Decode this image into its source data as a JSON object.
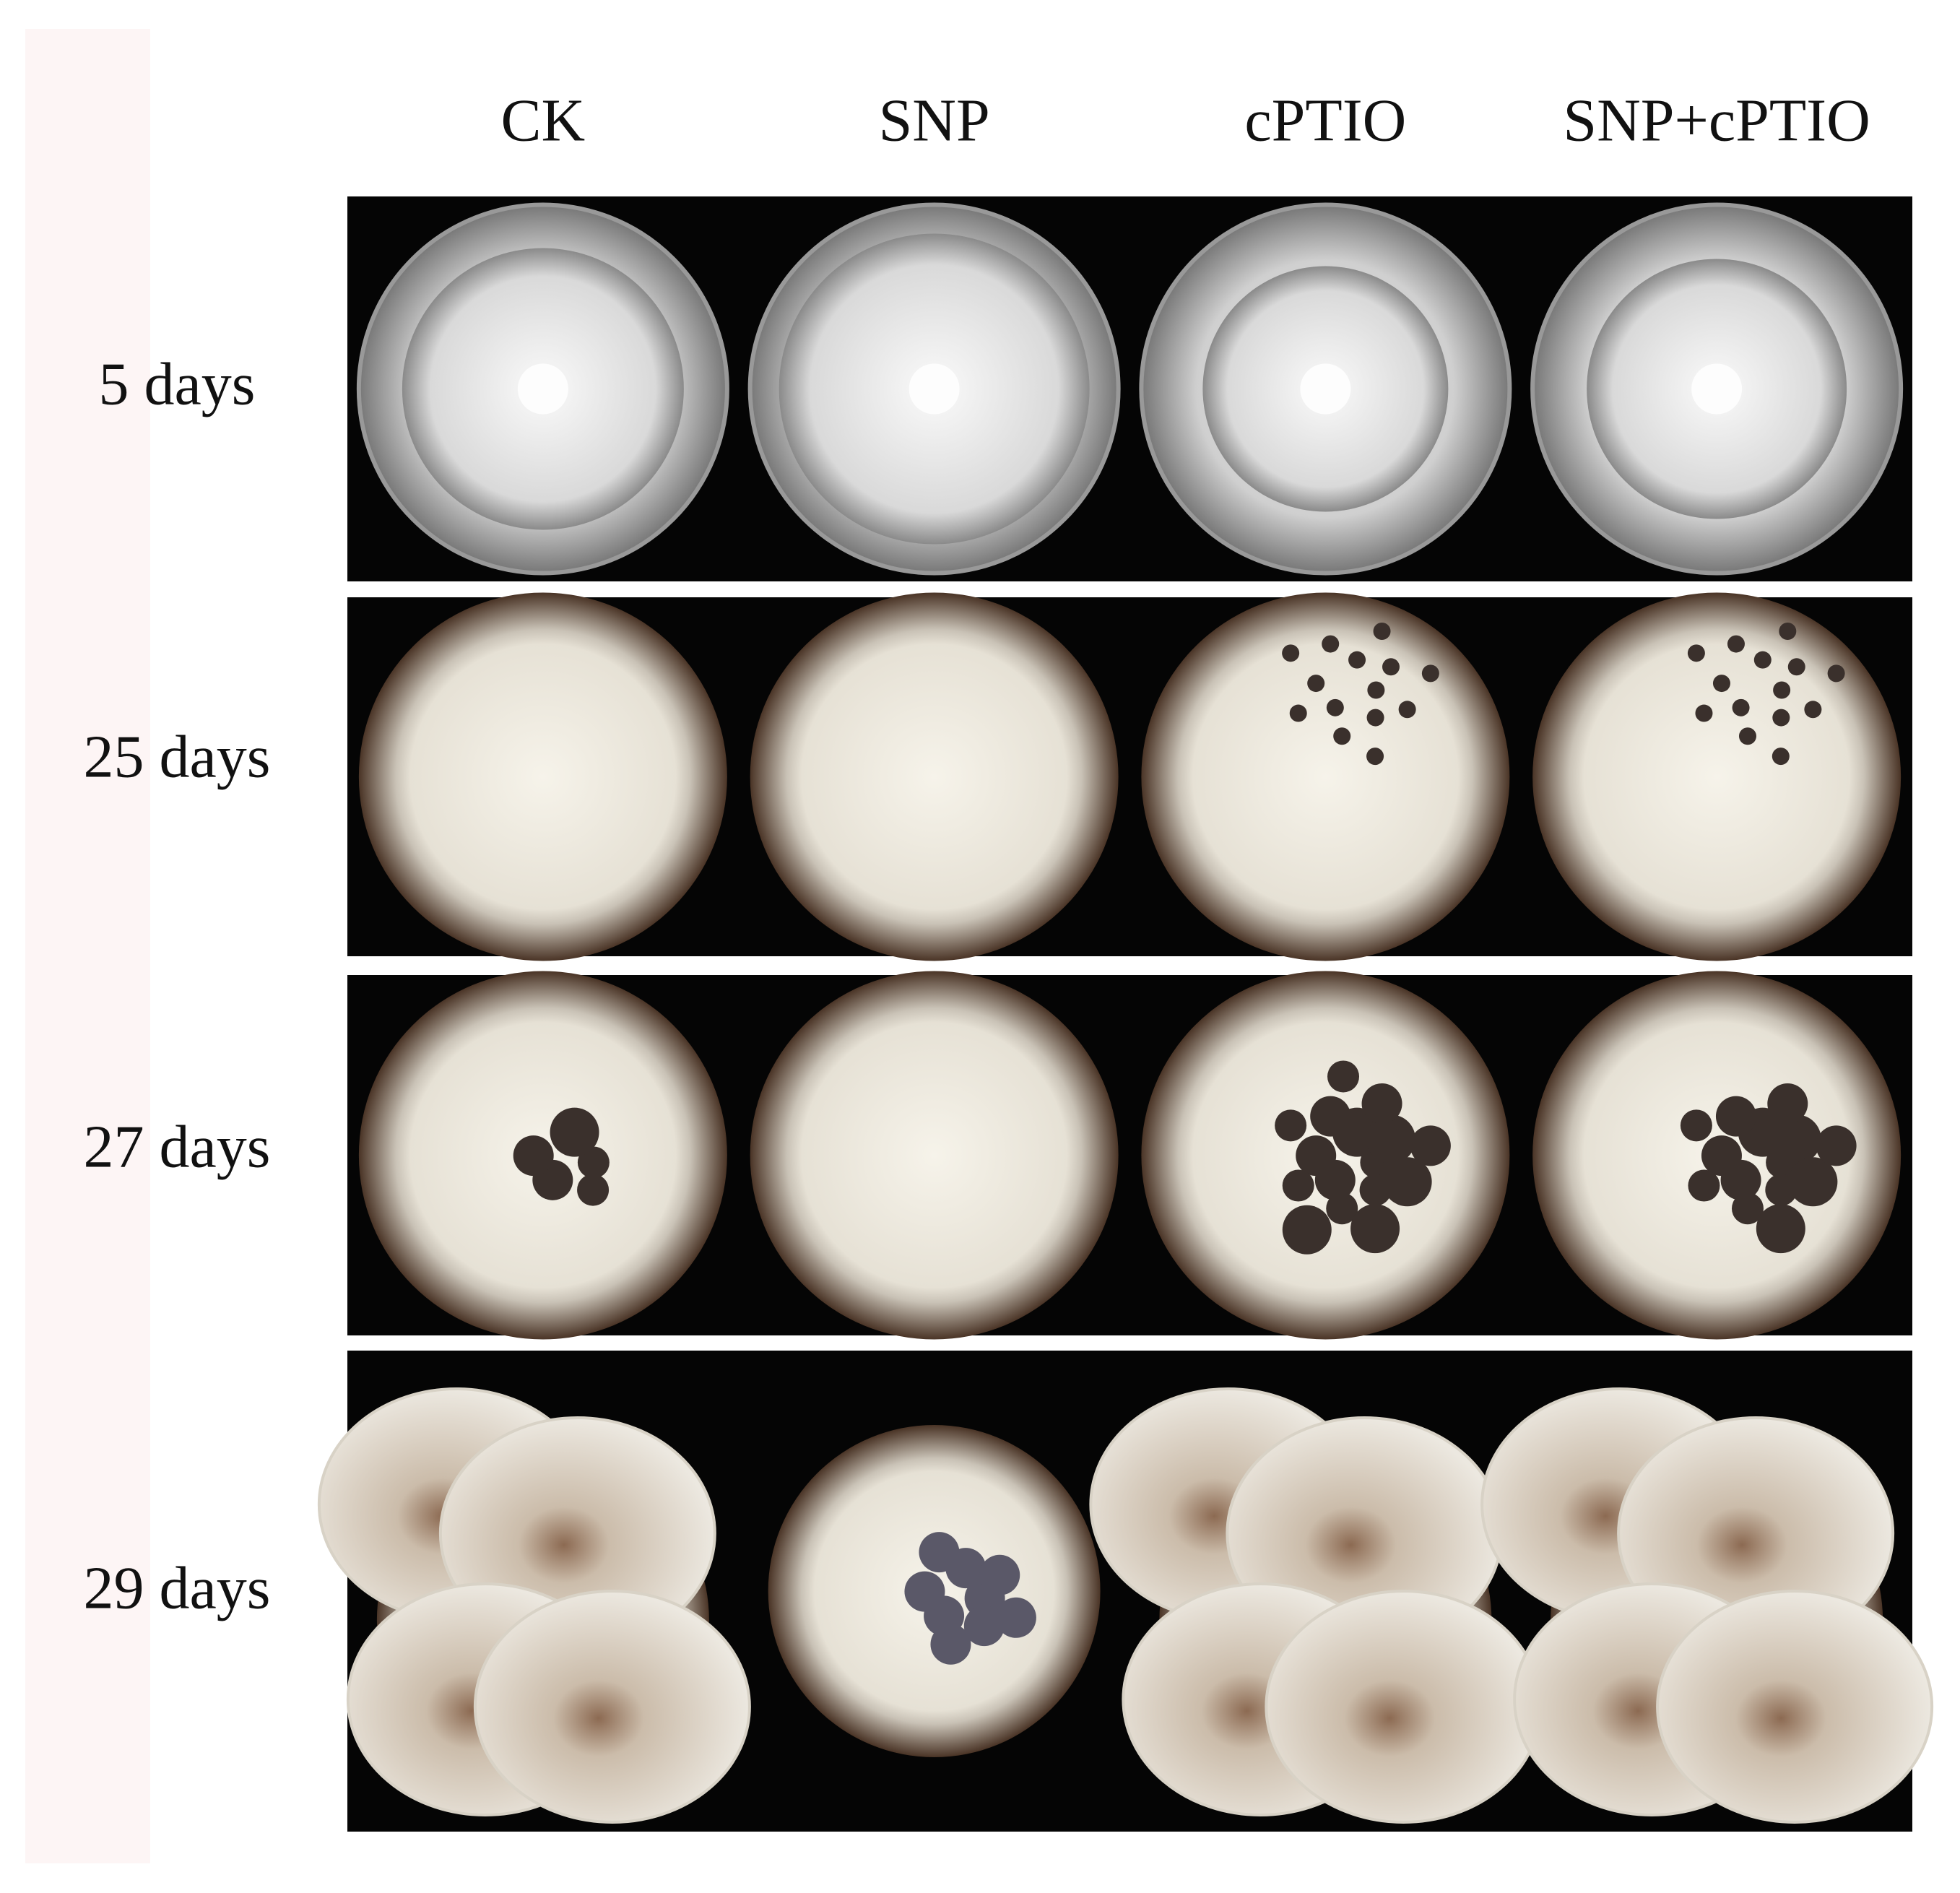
{
  "columns": [
    "CK",
    "SNP",
    "cPTIO",
    "SNP+cPTIO"
  ],
  "rows": [
    "5 days",
    "25 days",
    "27 days",
    "29 days"
  ]
}
